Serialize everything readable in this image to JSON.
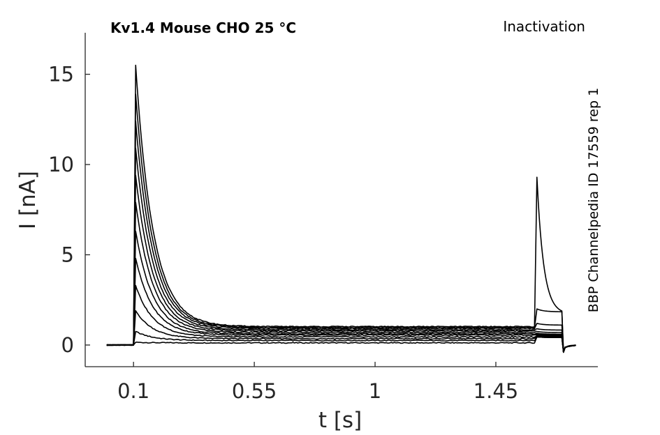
{
  "chart_data": {
    "type": "line",
    "title": "Kv1.4  Mouse  CHO  25 °C",
    "protocol_label": "Inactivation",
    "source_label": "BBP Channelpedia ID 17559 rep 1",
    "xlabel": "t [s]",
    "ylabel": "I [nA]",
    "xlim": [
      -0.08,
      1.83
    ],
    "ylim": [
      -1.2,
      17.3
    ],
    "xticks": [
      0.1,
      0.55,
      1,
      1.45
    ],
    "xtick_labels": [
      "0.1",
      "0.55",
      "1",
      "1.45"
    ],
    "yticks": [
      0,
      5,
      10,
      15
    ],
    "ytick_labels": [
      "0",
      "5",
      "10",
      "15"
    ],
    "grid": false,
    "legend": "none",
    "line_color": "#000000",
    "sweeps": {
      "baseline_start": 0.0,
      "step_on": 0.1,
      "test_on": 1.6,
      "test_off": 1.7,
      "end": 1.75,
      "series": [
        {
          "peak": 0.15,
          "steady": 0.12,
          "test_peak": 0.45
        },
        {
          "peak": 0.75,
          "steady": 0.25,
          "test_peak": 0.45
        },
        {
          "peak": 1.9,
          "steady": 0.35,
          "test_peak": 0.45
        },
        {
          "peak": 3.3,
          "steady": 0.45,
          "test_peak": 0.5
        },
        {
          "peak": 4.8,
          "steady": 0.55,
          "test_peak": 0.55
        },
        {
          "peak": 6.3,
          "steady": 0.62,
          "test_peak": 0.6
        },
        {
          "peak": 7.9,
          "steady": 0.7,
          "test_peak": 0.65
        },
        {
          "peak": 9.4,
          "steady": 0.78,
          "test_peak": 0.75
        },
        {
          "peak": 10.9,
          "steady": 0.85,
          "test_peak": 0.9
        },
        {
          "peak": 12.4,
          "steady": 0.92,
          "test_peak": 1.2
        },
        {
          "peak": 13.9,
          "steady": 0.97,
          "test_peak": 2.0
        },
        {
          "peak": 15.5,
          "steady": 1.02,
          "test_peak": 9.3
        }
      ]
    }
  }
}
